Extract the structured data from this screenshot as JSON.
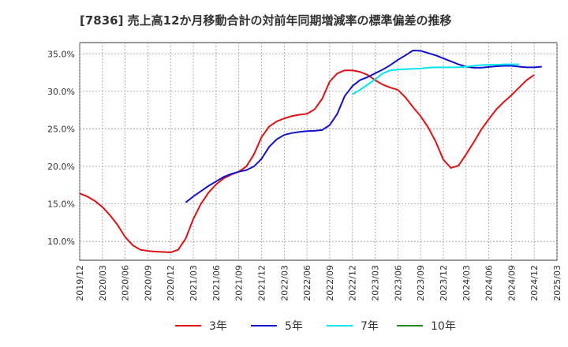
{
  "chart_data": {
    "type": "line",
    "title": "[7836]  売上高12か月移動合計の対前年同期増減率の標準偏差の推移",
    "xlabel": "",
    "ylabel": "",
    "ylim": [
      7.5,
      36.5
    ],
    "yticks": [
      "10.0%",
      "15.0%",
      "20.0%",
      "25.0%",
      "30.0%",
      "35.0%"
    ],
    "ytick_values": [
      10,
      15,
      20,
      25,
      30,
      35
    ],
    "xticks": [
      "2019/12",
      "2020/03",
      "2020/06",
      "2020/09",
      "2020/12",
      "2021/03",
      "2021/06",
      "2021/09",
      "2021/12",
      "2022/03",
      "2022/06",
      "2022/09",
      "2022/12",
      "2023/03",
      "2023/06",
      "2023/09",
      "2023/12",
      "2024/03",
      "2024/06",
      "2024/09",
      "2024/12",
      "2025/03"
    ],
    "grid": true,
    "legend_position": "bottom",
    "series": [
      {
        "name": "3年",
        "color": "#dd1111",
        "start": "2019/12",
        "values": [
          16.4,
          16.0,
          15.4,
          14.6,
          13.5,
          12.2,
          10.6,
          9.5,
          8.9,
          8.75,
          8.65,
          8.6,
          8.55,
          8.9,
          10.4,
          13.0,
          15.0,
          16.5,
          17.6,
          18.4,
          18.9,
          19.3,
          20.0,
          21.6,
          23.9,
          25.3,
          26.0,
          26.4,
          26.7,
          26.9,
          27.0,
          27.6,
          29.0,
          31.3,
          32.4,
          32.8,
          32.8,
          32.6,
          32.2,
          31.5,
          30.9,
          30.5,
          30.2,
          29.2,
          27.9,
          26.7,
          25.2,
          23.3,
          20.9,
          19.8,
          20.1,
          21.6,
          23.2,
          24.9,
          26.3,
          27.6,
          28.6,
          29.5,
          30.5,
          31.5,
          32.2
        ]
      },
      {
        "name": "5年",
        "color": "#1111cc",
        "start": "2021/02",
        "values": [
          15.2,
          16.0,
          16.7,
          17.4,
          18.0,
          18.6,
          19.0,
          19.3,
          19.5,
          20.0,
          21.0,
          22.6,
          23.6,
          24.2,
          24.45,
          24.6,
          24.7,
          24.75,
          24.85,
          25.5,
          27.0,
          29.4,
          30.7,
          31.5,
          31.9,
          32.4,
          32.9,
          33.5,
          34.2,
          34.8,
          35.45,
          35.4,
          35.1,
          34.8,
          34.4,
          34.0,
          33.6,
          33.3,
          33.15,
          33.15,
          33.25,
          33.35,
          33.4,
          33.4,
          33.3,
          33.2,
          33.2,
          33.3
        ]
      },
      {
        "name": "7年",
        "color": "#00e5ee",
        "start": "2022/12",
        "values": [
          29.6,
          30.2,
          30.9,
          31.6,
          32.4,
          32.8,
          32.9,
          32.95,
          33.0,
          33.05,
          33.15,
          33.2,
          33.2,
          33.2,
          33.2,
          33.3,
          33.4,
          33.5,
          33.55,
          33.55,
          33.6,
          33.6,
          33.6
        ]
      },
      {
        "name": "10年",
        "color": "#228b22",
        "start": "",
        "values": []
      }
    ]
  }
}
